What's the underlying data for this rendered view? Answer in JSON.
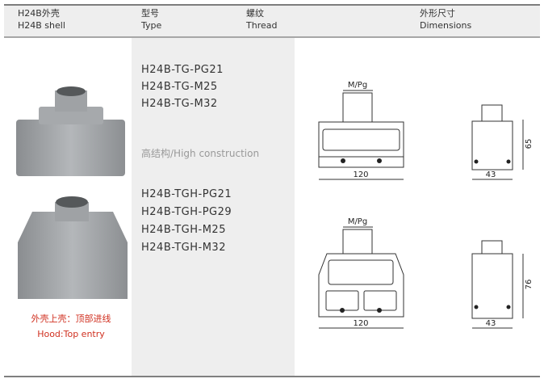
{
  "header": {
    "columns": [
      {
        "zh": "H24B外壳",
        "en": "H24B shell"
      },
      {
        "zh": "型号",
        "en": "Type"
      },
      {
        "zh": "螺纹",
        "en": "Thread"
      },
      {
        "zh": "外形尺寸",
        "en": "Dimensions"
      }
    ]
  },
  "caption": {
    "zh": "外壳上壳：顶部进线",
    "en": "Hood:Top entry"
  },
  "groups": [
    {
      "types": [
        "H24B-TG-PG21",
        "H24B-TG-M25",
        "H24B-TG-M32"
      ],
      "drawing": {
        "thread": "M/Pg",
        "width": 120,
        "height": 65,
        "depth": 43
      }
    },
    {
      "note": "高结构/High construction",
      "types": [
        "H24B-TGH-PG21",
        "H24B-TGH-PG29",
        "H24B-TGH-M25",
        "H24B-TGH-M32"
      ],
      "drawing": {
        "thread": "M/Pg",
        "width": 120,
        "height": 76,
        "depth": 43
      }
    }
  ]
}
